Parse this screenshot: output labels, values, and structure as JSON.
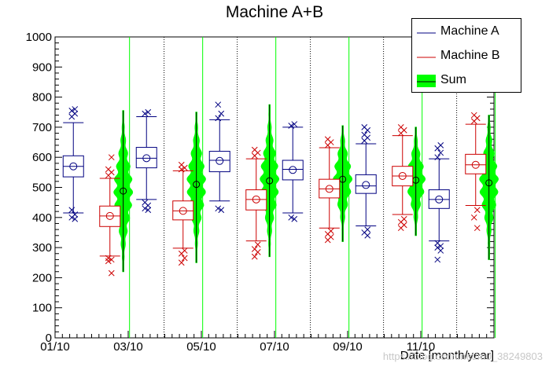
{
  "chart_data": {
    "type": "boxplot",
    "title": "Machine A+B",
    "xlabel": "Date [month/year]",
    "ylabel": "",
    "ylim": [
      0,
      1000
    ],
    "y_major_ticks": [
      0,
      100,
      200,
      300,
      400,
      500,
      600,
      700,
      800,
      900,
      1000
    ],
    "x_tick_labels": [
      "01/10",
      "03/10",
      "05/10",
      "07/10",
      "09/10",
      "11/10"
    ],
    "legend_position": "top-right",
    "colors": {
      "A": "#000080",
      "B": "#cc0000",
      "Sum": "#00ff00"
    },
    "series": [
      {
        "name": "Machine A",
        "color": "#000080",
        "boxes": [
          {
            "month": 1,
            "mean": 570,
            "median": 570,
            "q1": 535,
            "q3": 605,
            "whisker_low": 415,
            "whisker_high": 715,
            "outliers": [
              735,
              745,
              755,
              760,
              425,
              410,
              400,
              395
            ]
          },
          {
            "month": 3,
            "mean": 597,
            "median": 597,
            "q1": 565,
            "q3": 633,
            "whisker_low": 460,
            "whisker_high": 735,
            "outliers": [
              745,
              750,
              450,
              440,
              430,
              425
            ]
          },
          {
            "month": 5,
            "mean": 588,
            "median": 590,
            "q1": 552,
            "q3": 620,
            "whisker_low": 455,
            "whisker_high": 725,
            "outliers": [
              730,
              745,
              775,
              425,
              430
            ]
          },
          {
            "month": 7,
            "mean": 558,
            "median": 560,
            "q1": 525,
            "q3": 590,
            "whisker_low": 415,
            "whisker_high": 700,
            "outliers": [
              705,
              710,
              400,
              395
            ]
          },
          {
            "month": 9,
            "mean": 508,
            "median": 505,
            "q1": 480,
            "q3": 542,
            "whisker_low": 372,
            "whisker_high": 645,
            "outliers": [
              655,
              665,
              675,
              690,
              700,
              360,
              350,
              340
            ]
          },
          {
            "month": 11,
            "mean": 460,
            "median": 460,
            "q1": 430,
            "q3": 492,
            "whisker_low": 322,
            "whisker_high": 595,
            "outliers": [
              600,
              615,
              630,
              640,
              315,
              305,
              300,
              290,
              260
            ]
          }
        ]
      },
      {
        "name": "Machine B",
        "color": "#cc0000",
        "boxes": [
          {
            "month": 2,
            "mean": 405,
            "median": 405,
            "q1": 370,
            "q3": 438,
            "whisker_low": 272,
            "whisker_high": 530,
            "outliers": [
              540,
              550,
              560,
              600,
              265,
              260,
              255,
              215
            ]
          },
          {
            "month": 4,
            "mean": 422,
            "median": 422,
            "q1": 392,
            "q3": 455,
            "whisker_low": 298,
            "whisker_high": 555,
            "outliers": [
              560,
              565,
              575,
              290,
              280,
              265,
              250
            ]
          },
          {
            "month": 6,
            "mean": 460,
            "median": 460,
            "q1": 425,
            "q3": 492,
            "whisker_low": 322,
            "whisker_high": 595,
            "outliers": [
              605,
              615,
              625,
              310,
              295,
              285,
              270
            ]
          },
          {
            "month": 8,
            "mean": 495,
            "median": 495,
            "q1": 465,
            "q3": 527,
            "whisker_low": 365,
            "whisker_high": 632,
            "outliers": [
              640,
              650,
              660,
              355,
              345,
              335,
              325
            ]
          },
          {
            "month": 10,
            "mean": 538,
            "median": 538,
            "q1": 505,
            "q3": 570,
            "whisker_low": 410,
            "whisker_high": 672,
            "outliers": [
              680,
              690,
              700,
              395,
              385,
              375,
              365
            ]
          },
          {
            "month": 12,
            "mean": 575,
            "median": 575,
            "q1": 545,
            "q3": 610,
            "whisker_low": 440,
            "whisker_high": 710,
            "outliers": [
              720,
              730,
              740,
              425,
              400,
              365
            ]
          }
        ]
      },
      {
        "name": "Sum",
        "color": "#00ff00",
        "violins": [
          {
            "position": 2.45,
            "mean": 488,
            "min": 220,
            "max": 755
          },
          {
            "position": 4.45,
            "mean": 510,
            "min": 250,
            "max": 750
          },
          {
            "position": 6.45,
            "mean": 522,
            "min": 270,
            "max": 775
          },
          {
            "position": 8.45,
            "mean": 527,
            "min": 320,
            "max": 705
          },
          {
            "position": 10.45,
            "mean": 524,
            "min": 340,
            "max": 700
          },
          {
            "position": 12.45,
            "mean": 515,
            "min": 260,
            "max": 740
          }
        ]
      }
    ]
  },
  "watermark": "https://blog.csdn.net/m0_38249803"
}
